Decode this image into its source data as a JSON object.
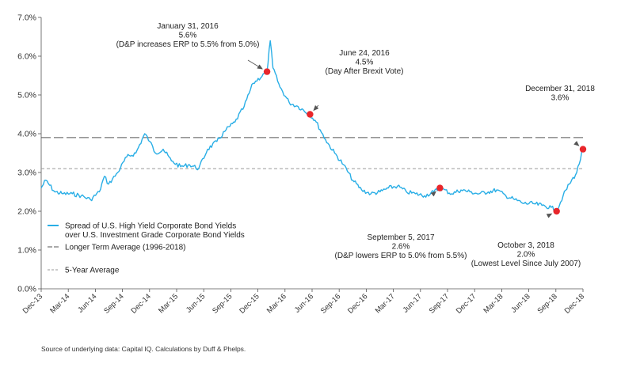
{
  "chart_data": {
    "type": "line",
    "ylim": [
      0,
      7
    ],
    "y_ticks": [
      "0.0%",
      "1.0%",
      "2.0%",
      "3.0%",
      "4.0%",
      "5.0%",
      "6.0%",
      "7.0%"
    ],
    "x_ticks": [
      "Dec-13",
      "Mar-14",
      "Jun-14",
      "Sep-14",
      "Dec-14",
      "Mar-15",
      "Jun-15",
      "Sep-15",
      "Dec-15",
      "Mar-16",
      "Jun-16",
      "Sep-16",
      "Dec-16",
      "Mar-17",
      "Jun-17",
      "Sep-17",
      "Dec-17",
      "Mar-18",
      "Jun-18",
      "Sep-18",
      "Dec-18"
    ],
    "grid": false,
    "legend_position": "left-middle",
    "colors": {
      "series": "#29aee6",
      "reference_long": "#555555",
      "reference_5yr": "#999999",
      "marker": "#e8262b",
      "arrow": "#555555"
    },
    "series": [
      {
        "name": "Spread of U.S. High Yield Corporate Bond Yields over U.S. Investment Grade Corporate Bond Yields",
        "x": [
          "2013-12-31",
          "2014-01-15",
          "2014-02-15",
          "2014-03-15",
          "2014-04-15",
          "2014-05-15",
          "2014-06-15",
          "2014-07-15",
          "2014-08-01",
          "2014-08-15",
          "2014-09-15",
          "2014-10-15",
          "2014-11-15",
          "2014-12-15",
          "2015-01-01",
          "2015-01-20",
          "2015-02-15",
          "2015-03-15",
          "2015-04-15",
          "2015-05-15",
          "2015-06-15",
          "2015-07-15",
          "2015-08-15",
          "2015-09-15",
          "2015-10-15",
          "2015-11-15",
          "2015-12-15",
          "2016-01-31",
          "2016-02-11",
          "2016-02-20",
          "2016-03-15",
          "2016-04-15",
          "2016-05-15",
          "2016-06-24",
          "2016-07-15",
          "2016-08-15",
          "2016-09-15",
          "2016-10-15",
          "2016-11-15",
          "2016-12-15",
          "2017-01-15",
          "2017-02-15",
          "2017-03-15",
          "2017-04-15",
          "2017-05-15",
          "2017-06-15",
          "2017-07-15",
          "2017-08-15",
          "2017-09-05",
          "2017-10-15",
          "2017-11-15",
          "2017-12-15",
          "2018-01-15",
          "2018-02-15",
          "2018-03-15",
          "2018-04-15",
          "2018-05-15",
          "2018-06-15",
          "2018-07-15",
          "2018-08-15",
          "2018-09-15",
          "2018-10-03",
          "2018-10-25",
          "2018-11-15",
          "2018-12-10",
          "2018-12-31"
        ],
        "y": [
          2.6,
          2.8,
          2.5,
          2.45,
          2.45,
          2.4,
          2.3,
          2.5,
          2.9,
          2.7,
          3.0,
          3.4,
          3.5,
          4.0,
          3.8,
          3.5,
          3.6,
          3.3,
          3.15,
          3.2,
          3.1,
          3.6,
          3.8,
          4.1,
          4.3,
          4.7,
          5.3,
          5.6,
          6.4,
          5.7,
          5.2,
          4.8,
          4.7,
          4.5,
          4.3,
          3.85,
          3.5,
          3.2,
          2.8,
          2.55,
          2.45,
          2.5,
          2.6,
          2.65,
          2.5,
          2.45,
          2.4,
          2.5,
          2.6,
          2.45,
          2.55,
          2.5,
          2.45,
          2.5,
          2.55,
          2.4,
          2.3,
          2.2,
          2.2,
          2.15,
          2.1,
          2.0,
          2.4,
          2.7,
          3.0,
          3.6
        ]
      }
    ],
    "reference_lines": [
      {
        "name": "Longer Term Average (1996-2018)",
        "value": 3.9,
        "style": "long-dash"
      },
      {
        "name": "5-Year Average",
        "value": 3.1,
        "style": "short-dash"
      }
    ],
    "legend": [
      "Spread of U.S. High Yield Corporate Bond Yields",
      "over U.S. Investment Grade Corporate Bond Yields",
      "Longer Term Average (1996-2018)",
      "5-Year Average"
    ],
    "annotations": [
      {
        "date": "2016-01-31",
        "value": 5.6,
        "lines": [
          "January 31, 2016",
          "5.6%",
          "(D&P increases ERP to 5.5% from 5.0%)"
        ]
      },
      {
        "date": "2016-06-24",
        "value": 4.5,
        "lines": [
          "June 24, 2016",
          "4.5%",
          "(Day After Brexit Vote)"
        ]
      },
      {
        "date": "2017-09-05",
        "value": 2.6,
        "lines": [
          "September 5, 2017",
          "2.6%",
          "(D&P lowers ERP to 5.0% from 5.5%)"
        ]
      },
      {
        "date": "2018-10-03",
        "value": 2.0,
        "lines": [
          "October 3, 2018",
          "2.0%",
          "(Lowest Level Since July 2007)"
        ]
      },
      {
        "date": "2018-12-31",
        "value": 3.6,
        "lines": [
          "December 31, 2018",
          "3.6%"
        ]
      }
    ]
  },
  "footer": {
    "source": "Source of underlying data: Capital IQ. Calculations by Duff & Phelps."
  }
}
